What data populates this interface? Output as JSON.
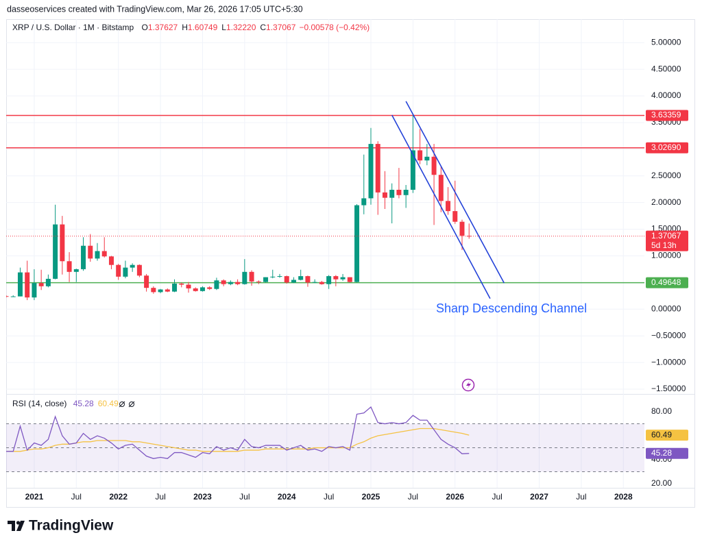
{
  "header": "dasseoservices created with TradingView.com, Mar 26, 2026 17:05 UTC+5:30",
  "brand": "TradingView",
  "chart_data": {
    "type": "candlestick",
    "title": "XRP / U.S. Dollar · 1M · Bitstamp",
    "legend": [
      {
        "key": "O",
        "value": 1.37627
      },
      {
        "key": "H",
        "value": 1.60749
      },
      {
        "key": "L",
        "value": {
          "value": 1.3222,
          "label": "1.32220"
        }
      },
      {
        "key": "C",
        "value": 1.37067
      }
    ],
    "change_label": "−0.00578 (−0.42%)",
    "up_color": "#089981",
    "down_color": "#f23645",
    "x": [
      "2020-09",
      "2020-10",
      "2020-11",
      "2020-12",
      "2021-01",
      "2021-02",
      "2021-03",
      "2021-04",
      "2021-05",
      "2021-06",
      "2021-07",
      "2021-08",
      "2021-09",
      "2021-10",
      "2021-11",
      "2021-12",
      "2022-01",
      "2022-02",
      "2022-03",
      "2022-04",
      "2022-05",
      "2022-06",
      "2022-07",
      "2022-08",
      "2022-09",
      "2022-10",
      "2022-11",
      "2022-12",
      "2023-01",
      "2023-02",
      "2023-03",
      "2023-04",
      "2023-05",
      "2023-06",
      "2023-07",
      "2023-08",
      "2023-09",
      "2023-10",
      "2023-11",
      "2023-12",
      "2024-01",
      "2024-02",
      "2024-03",
      "2024-04",
      "2024-05",
      "2024-06",
      "2024-07",
      "2024-08",
      "2024-09",
      "2024-10",
      "2024-11",
      "2024-12",
      "2025-01",
      "2025-02",
      "2025-03",
      "2025-04",
      "2025-05",
      "2025-06",
      "2025-07",
      "2025-08",
      "2025-09",
      "2025-10",
      "2025-11",
      "2025-12",
      "2026-01",
      "2026-02",
      "2026-03"
    ],
    "open": [
      0.245,
      0.24,
      0.24,
      0.69,
      0.22,
      0.49,
      0.43,
      0.57,
      1.59,
      0.9,
      0.7,
      0.75,
      1.19,
      0.95,
      1.09,
      0.99,
      0.83,
      0.61,
      0.78,
      0.83,
      0.63,
      0.4,
      0.32,
      0.37,
      0.33,
      0.48,
      0.46,
      0.39,
      0.34,
      0.41,
      0.38,
      0.54,
      0.47,
      0.51,
      0.47,
      0.7,
      0.52,
      0.51,
      0.6,
      0.61,
      0.62,
      0.5,
      0.55,
      0.62,
      0.5,
      0.51,
      0.47,
      0.62,
      0.56,
      0.6,
      0.51,
      1.95,
      2.08,
      3.1,
      2.19,
      2.09,
      2.24,
      2.14,
      2.24,
      2.98,
      2.79,
      2.86,
      2.52,
      2.03,
      1.84,
      1.64,
      1.37627
    ],
    "high": [
      0.26,
      0.26,
      0.78,
      0.91,
      0.75,
      0.74,
      0.65,
      1.96,
      1.75,
      1.07,
      0.76,
      1.35,
      1.41,
      1.24,
      1.35,
      1.0,
      0.85,
      0.91,
      0.86,
      0.84,
      0.66,
      0.43,
      0.38,
      0.39,
      0.56,
      0.5,
      0.51,
      0.41,
      0.43,
      0.43,
      0.59,
      0.56,
      0.54,
      0.56,
      0.94,
      0.73,
      0.54,
      0.6,
      0.74,
      0.66,
      0.63,
      0.6,
      0.74,
      0.63,
      0.56,
      0.53,
      0.64,
      0.64,
      0.66,
      0.6,
      1.97,
      2.9,
      3.4,
      3.15,
      2.59,
      2.36,
      2.65,
      2.33,
      3.66,
      3.38,
      3.1,
      3.1,
      2.69,
      2.29,
      2.41,
      1.68,
      1.60749
    ],
    "low": [
      0.22,
      0.23,
      0.24,
      0.17,
      0.17,
      0.36,
      0.41,
      0.56,
      0.65,
      0.51,
      0.51,
      0.72,
      0.89,
      0.91,
      0.97,
      0.75,
      0.55,
      0.58,
      0.7,
      0.6,
      0.33,
      0.29,
      0.3,
      0.32,
      0.32,
      0.41,
      0.31,
      0.33,
      0.33,
      0.36,
      0.36,
      0.43,
      0.45,
      0.45,
      0.46,
      0.44,
      0.47,
      0.5,
      0.58,
      0.59,
      0.48,
      0.49,
      0.54,
      0.42,
      0.49,
      0.46,
      0.38,
      0.43,
      0.53,
      0.5,
      0.5,
      1.78,
      1.96,
      1.77,
      1.88,
      1.61,
      2.08,
      1.9,
      2.18,
      2.72,
      2.7,
      1.58,
      1.82,
      1.77,
      1.6,
      1.11,
      1.3222
    ],
    "close": [
      0.24,
      0.24,
      0.69,
      0.22,
      0.49,
      0.43,
      0.57,
      1.59,
      0.9,
      0.7,
      0.75,
      1.19,
      0.95,
      1.09,
      0.99,
      0.83,
      0.61,
      0.78,
      0.83,
      0.63,
      0.4,
      0.32,
      0.37,
      0.33,
      0.48,
      0.46,
      0.39,
      0.34,
      0.41,
      0.38,
      0.54,
      0.47,
      0.51,
      0.47,
      0.7,
      0.52,
      0.51,
      0.6,
      0.61,
      0.62,
      0.5,
      0.55,
      0.62,
      0.5,
      0.51,
      0.47,
      0.62,
      0.56,
      0.6,
      0.51,
      1.95,
      2.08,
      3.1,
      2.19,
      2.09,
      2.24,
      2.14,
      2.24,
      2.98,
      2.79,
      2.86,
      2.52,
      2.03,
      1.84,
      1.64,
      1.38,
      1.37067
    ],
    "countdown": "5d 13h",
    "xlim": [
      "2020-09",
      "2028-04"
    ],
    "xticks": [
      {
        "value": "2021-01",
        "label": "2021"
      },
      {
        "value": "2021-07",
        "label": "Jul"
      },
      {
        "value": "2022-01",
        "label": "2022"
      },
      {
        "value": "2022-07",
        "label": "Jul"
      },
      {
        "value": "2023-01",
        "label": "2023"
      },
      {
        "value": "2023-07",
        "label": "Jul"
      },
      {
        "value": "2024-01",
        "label": "2024"
      },
      {
        "value": "2024-07",
        "label": "Jul"
      },
      {
        "value": "2025-01",
        "label": "2025"
      },
      {
        "value": "2025-07",
        "label": "Jul"
      },
      {
        "value": "2026-01",
        "label": "2026"
      },
      {
        "value": "2026-07",
        "label": "Jul"
      },
      {
        "value": "2027-01",
        "label": "2027"
      },
      {
        "value": "2027-07",
        "label": "Jul"
      },
      {
        "value": "2028-01",
        "label": "2028"
      }
    ],
    "ylim": [
      -1.59,
      5.44
    ],
    "yticks": [
      {
        "value": 5,
        "label": "5.00000"
      },
      {
        "value": 4.5,
        "label": "4.50000"
      },
      {
        "value": 4,
        "label": "4.00000"
      },
      {
        "value": 3.5,
        "label": "3.50000"
      },
      {
        "value": 3,
        "label": "3.00000"
      },
      {
        "value": 2.5,
        "label": "2.50000"
      },
      {
        "value": 2,
        "label": "2.00000"
      },
      {
        "value": 1.5,
        "label": "1.50000"
      },
      {
        "value": 1,
        "label": "1.00000"
      },
      {
        "value": 0.5,
        "label": "0.50000"
      },
      {
        "value": 0,
        "label": "0.00000"
      },
      {
        "value": -0.5,
        "label": "−0.50000"
      },
      {
        "value": -1,
        "label": "−1.00000"
      },
      {
        "value": -1.5,
        "label": "−1.50000"
      }
    ],
    "grid": true,
    "levels": [
      {
        "value": 3.63359,
        "color": "#f23645"
      },
      {
        "value": {
          "value": 3.0269,
          "label": "3.02690"
        },
        "color": "#f23645"
      },
      {
        "value": 0.49648,
        "color": "#4caf50"
      }
    ],
    "channel_color": "#2342d8",
    "channel_lines": [
      {
        "start": [
          "2025-04",
          3.64
        ],
        "end": [
          "2026-06",
          0.2
        ]
      },
      {
        "start": [
          "2025-06",
          3.9
        ],
        "end": [
          "2026-08",
          0.49
        ]
      }
    ],
    "annotation": "Sharp Descending Channel",
    "annotation_color": "#2962ff",
    "rsi": {
      "title": "RSI (14, close)",
      "color": "#7e57c2",
      "ma_color": "#f5c242",
      "values": [
        47,
        47,
        68,
        48,
        54,
        52,
        57,
        76,
        60,
        53,
        54,
        62,
        57,
        60,
        58,
        54,
        49,
        52,
        53,
        48,
        43,
        41,
        42,
        41,
        46,
        46,
        44,
        42,
        46,
        45,
        51,
        48,
        50,
        48,
        57,
        51,
        50,
        52,
        52,
        52,
        48,
        50,
        52,
        48,
        49,
        47,
        51,
        50,
        51,
        48,
        78,
        79,
        84,
        71,
        70,
        71,
        70,
        71,
        77,
        73,
        73,
        65,
        57,
        53,
        50,
        45,
        45.28
      ],
      "ma": [
        47,
        47,
        47,
        48,
        49,
        49,
        50,
        52,
        53,
        53,
        54,
        55,
        55,
        56,
        56,
        56,
        56,
        56,
        55,
        55,
        54,
        53,
        52,
        51,
        50,
        49,
        48,
        48,
        47,
        47,
        47,
        47,
        47,
        47,
        48,
        48,
        48,
        49,
        49,
        49,
        49,
        49,
        49,
        49,
        50,
        50,
        50,
        50,
        50,
        50,
        53,
        55,
        58,
        60,
        61,
        62,
        63,
        64,
        65,
        66,
        66,
        66,
        65,
        64,
        63,
        62,
        60.49
      ],
      "ylim": [
        16.6,
        94.3
      ],
      "yticks": [
        {
          "value": 80,
          "label": "80.00"
        },
        {
          "value": 40,
          "label": "40.00"
        },
        {
          "value": 20,
          "label": "20.00"
        }
      ],
      "levels": [
        70,
        50,
        30
      ]
    }
  }
}
